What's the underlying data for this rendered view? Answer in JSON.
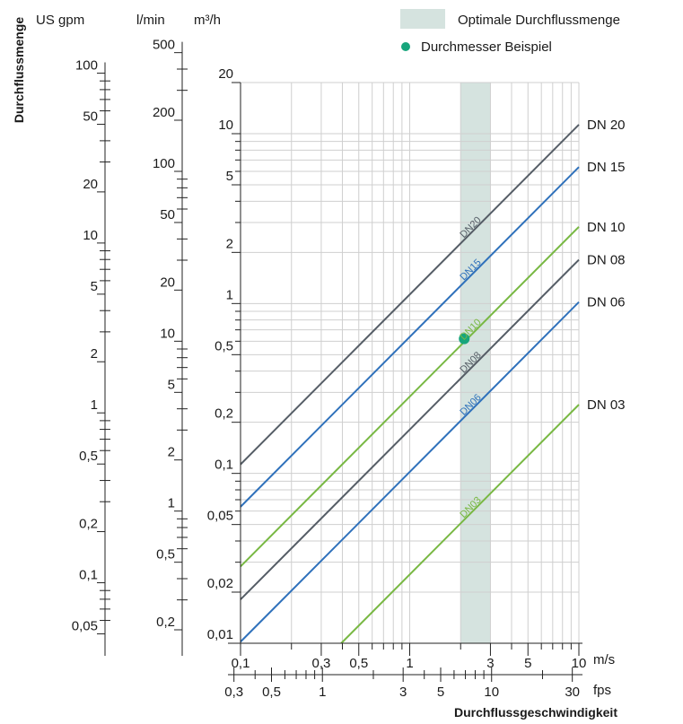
{
  "chart_data": {
    "type": "line",
    "ylabel": "Durchflussmenge",
    "xlabel": "Durchflussgeschwindigkeit",
    "x_scale": "log",
    "y_scale": "log",
    "xlim": [
      0.1,
      10
    ],
    "ylim": [
      0.01,
      20
    ],
    "x_unit": "m/s",
    "y_unit": "m³/h",
    "x_ticks": [
      {
        "value": 0.1,
        "label": "0,1"
      },
      {
        "value": 0.3,
        "label": "0,3"
      },
      {
        "value": 0.5,
        "label": "0,5"
      },
      {
        "value": 1,
        "label": "1"
      },
      {
        "value": 3,
        "label": "3"
      },
      {
        "value": 5,
        "label": "5"
      },
      {
        "value": 10,
        "label": "10"
      }
    ],
    "x2_unit": "fps",
    "x2_ticks": [
      {
        "value": 0.3,
        "label": "0,3"
      },
      {
        "value": 0.5,
        "label": "0,5"
      },
      {
        "value": 1,
        "label": "1"
      },
      {
        "value": 3,
        "label": "3"
      },
      {
        "value": 5,
        "label": "5"
      },
      {
        "value": 10,
        "label": "10"
      },
      {
        "value": 30,
        "label": "30"
      }
    ],
    "y_ticks": [
      {
        "value": 0.01,
        "label": "0,01"
      },
      {
        "value": 0.02,
        "label": "0,02"
      },
      {
        "value": 0.05,
        "label": "0,05"
      },
      {
        "value": 0.1,
        "label": "0,1"
      },
      {
        "value": 0.2,
        "label": "0,2"
      },
      {
        "value": 0.5,
        "label": "0,5"
      },
      {
        "value": 1,
        "label": "1"
      },
      {
        "value": 2,
        "label": "2"
      },
      {
        "value": 5,
        "label": "5"
      },
      {
        "value": 10,
        "label": "10"
      },
      {
        "value": 20,
        "label": "20"
      }
    ],
    "y2_unit": "l/min",
    "y2_ticks": [
      {
        "value": 0.2,
        "label": "0,2"
      },
      {
        "value": 0.5,
        "label": "0,5"
      },
      {
        "value": 1,
        "label": "1"
      },
      {
        "value": 2,
        "label": "2"
      },
      {
        "value": 5,
        "label": "5"
      },
      {
        "value": 10,
        "label": "10"
      },
      {
        "value": 20,
        "label": "20"
      },
      {
        "value": 50,
        "label": "50"
      },
      {
        "value": 100,
        "label": "100"
      },
      {
        "value": 200,
        "label": "200"
      },
      {
        "value": 500,
        "label": "500"
      }
    ],
    "y3_unit": "US gpm",
    "y3_ticks": [
      {
        "value": 0.05,
        "label": "0,05"
      },
      {
        "value": 0.1,
        "label": "0,1"
      },
      {
        "value": 0.2,
        "label": "0,2"
      },
      {
        "value": 0.5,
        "label": "0,5"
      },
      {
        "value": 1,
        "label": "1"
      },
      {
        "value": 2,
        "label": "2"
      },
      {
        "value": 5,
        "label": "5"
      },
      {
        "value": 10,
        "label": "10"
      },
      {
        "value": 20,
        "label": "20"
      },
      {
        "value": 50,
        "label": "50"
      },
      {
        "value": 100,
        "label": "100"
      }
    ],
    "optimal_band": {
      "label": "Optimale Durchflussmenge",
      "x": [
        2,
        3
      ],
      "color": "#d5e3df"
    },
    "example_point": {
      "label": "Durchmesser Beispiel",
      "x": 2.1,
      "y": 0.62,
      "color": "#17a57c"
    },
    "series": [
      {
        "name": "DN 20",
        "inline_label": "DN20",
        "color": "#555d66",
        "x": [
          0.1,
          10
        ],
        "y": [
          0.113,
          11.3
        ]
      },
      {
        "name": "DN 15",
        "inline_label": "DN15",
        "color": "#2f71bb",
        "x": [
          0.1,
          10
        ],
        "y": [
          0.0636,
          6.36
        ]
      },
      {
        "name": "DN 10",
        "inline_label": "DN10",
        "color": "#78b843",
        "x": [
          0.1,
          10
        ],
        "y": [
          0.0283,
          2.83
        ]
      },
      {
        "name": "DN 08",
        "inline_label": "DN08",
        "color": "#555d66",
        "x": [
          0.1,
          10
        ],
        "y": [
          0.0181,
          1.81
        ]
      },
      {
        "name": "DN 06",
        "inline_label": "DN06",
        "color": "#2f71bb",
        "x": [
          0.1,
          10
        ],
        "y": [
          0.0102,
          1.02
        ]
      },
      {
        "name": "DN 03",
        "inline_label": "DN03",
        "color": "#78b843",
        "x": [
          0.1,
          10
        ],
        "y": [
          0.00254,
          0.254
        ]
      }
    ]
  }
}
